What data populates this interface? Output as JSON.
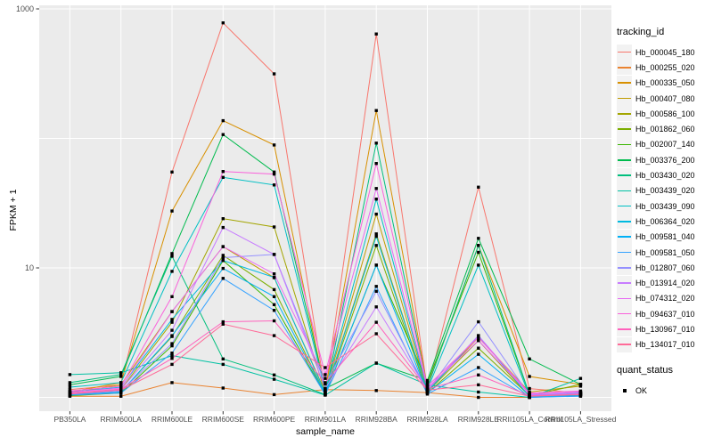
{
  "chart_data": {
    "type": "line",
    "title": "",
    "xlabel": "sample_name",
    "ylabel": "FPKM + 1",
    "y_scale": "log10",
    "ylim": [
      0.78,
      1060
    ],
    "grid": true,
    "legend_position": "right",
    "y_axis_ticks": [
      {
        "label": "1000",
        "value": 1000
      },
      {
        "label": "10",
        "value": 10
      }
    ],
    "unlabeled_gridline_values": [
      100,
      1
    ],
    "categories": [
      "PB350LA",
      "RRIM600LA",
      "RRIM600LE",
      "RRIM600SE",
      "RRIM600PE",
      "RRIM901LA",
      "RRIM928BA",
      "RRIM928LA",
      "RRIM928LE",
      "RRII105LA_Control",
      "RRII105LA_Stressed"
    ],
    "legend": {
      "title": "tracking_id"
    },
    "quant_legend": {
      "title": "quant_status",
      "items": [
        "OK"
      ]
    },
    "point_style": {
      "shape": "square",
      "color": "#000000"
    },
    "colors": {
      "panel_background": "#EBEBEB",
      "gridline": "#FFFFFF",
      "axis_text": "#4D4D4D",
      "tick_mark": "#333333",
      "legend_key_background": "#F2F2F2"
    },
    "series": [
      {
        "name": "Hb_000045_180",
        "color": "#F8766D",
        "values": [
          1.15,
          1.25,
          55,
          780,
          315,
          1.1,
          640,
          1.15,
          42,
          1.17,
          1.08
        ]
      },
      {
        "name": "Hb_000255_020",
        "color": "#EA8331",
        "values": [
          1.02,
          1.02,
          1.3,
          1.18,
          1.05,
          1.15,
          1.13,
          1.09,
          1.0,
          1.0,
          1.04
        ]
      },
      {
        "name": "Hb_000335_050",
        "color": "#D89000",
        "values": [
          1.1,
          1.3,
          27.5,
          137,
          89,
          1.12,
          164,
          1.2,
          14.9,
          1.45,
          1.26
        ]
      },
      {
        "name": "Hb_000407_080",
        "color": "#C09B00",
        "values": [
          1.08,
          1.25,
          4.6,
          14.6,
          8.4,
          1.1,
          26,
          1.12,
          2.9,
          1.1,
          1.22
        ]
      },
      {
        "name": "Hb_000586_100",
        "color": "#A3A500",
        "values": [
          1.05,
          1.15,
          3.8,
          24,
          20.7,
          1.08,
          18.3,
          1.1,
          2.75,
          1.02,
          1.06
        ]
      },
      {
        "name": "Hb_001862_060",
        "color": "#7CAE00",
        "values": [
          1.04,
          1.1,
          2.95,
          12.5,
          6.8,
          1.06,
          14.9,
          1.08,
          2.4,
          1.03,
          1.26
        ]
      },
      {
        "name": "Hb_002007_140",
        "color": "#39B600",
        "values": [
          1.03,
          1.08,
          2.5,
          11.4,
          5.2,
          1.05,
          10.5,
          1.3,
          13.2,
          1.05,
          1.05
        ]
      },
      {
        "name": "Hb_003376_200",
        "color": "#00BB4E",
        "values": [
          1.25,
          1.45,
          12.9,
          107,
          55,
          1.17,
          1.84,
          1.35,
          16.9,
          1.98,
          1.26
        ]
      },
      {
        "name": "Hb_003430_020",
        "color": "#00BF7D",
        "values": [
          1.3,
          1.5,
          12.3,
          1.98,
          1.49,
          1.05,
          92,
          1.2,
          14.9,
          1.05,
          1.1
        ]
      },
      {
        "name": "Hb_003439_020",
        "color": "#00C1A3",
        "values": [
          1.5,
          1.55,
          2.1,
          1.8,
          1.38,
          1.04,
          1.84,
          1.25,
          1.1,
          1.0,
          1.4
        ]
      },
      {
        "name": "Hb_003439_090",
        "color": "#00BFC4",
        "values": [
          1.2,
          1.3,
          9.4,
          50,
          43.7,
          1.12,
          34,
          1.15,
          10.5,
          1.02,
          1.08
        ]
      },
      {
        "name": "Hb_006364_020",
        "color": "#00BAE0",
        "values": [
          1.1,
          1.2,
          4.0,
          11.4,
          8.45,
          1.08,
          17.5,
          1.1,
          3.0,
          1.01,
          1.05
        ]
      },
      {
        "name": "Hb_009581_040",
        "color": "#00B0F6",
        "values": [
          1.05,
          1.1,
          3.0,
          9.9,
          6.0,
          1.06,
          10.5,
          1.08,
          2.15,
          1.0,
          1.03
        ]
      },
      {
        "name": "Hb_009581_050",
        "color": "#35A2FF",
        "values": [
          1.04,
          1.08,
          2.2,
          8.3,
          4.7,
          1.05,
          7.2,
          1.06,
          1.7,
          1.0,
          1.02
        ]
      },
      {
        "name": "Hb_012807_060",
        "color": "#9590FF",
        "values": [
          1.06,
          1.12,
          2.6,
          12.0,
          12.7,
          1.27,
          6.6,
          1.12,
          3.83,
          1.04,
          1.07
        ]
      },
      {
        "name": "Hb_013914_020",
        "color": "#C77CFF",
        "values": [
          1.08,
          1.15,
          3.3,
          20.5,
          12.7,
          1.17,
          5.0,
          1.14,
          3.0,
          1.05,
          1.09
        ]
      },
      {
        "name": "Hb_074312_020",
        "color": "#E76BF3",
        "values": [
          1.1,
          1.18,
          4.6,
          14.6,
          9.0,
          1.4,
          41,
          1.18,
          2.75,
          1.06,
          1.1
        ]
      },
      {
        "name": "Hb_094637_010",
        "color": "#FA62DB",
        "values": [
          1.12,
          1.22,
          6.0,
          55.5,
          53,
          1.5,
          64,
          1.22,
          2.9,
          1.08,
          1.12
        ]
      },
      {
        "name": "Hb_130967_010",
        "color": "#FF62BC",
        "values": [
          1.08,
          1.16,
          2.0,
          3.83,
          3.9,
          1.3,
          3.8,
          1.16,
          1.49,
          1.03,
          1.06
        ]
      },
      {
        "name": "Hb_134017_010",
        "color": "#FF6A98",
        "values": [
          1.06,
          1.14,
          1.8,
          3.68,
          3.0,
          1.7,
          3.1,
          1.14,
          1.25,
          1.02,
          1.05
        ]
      }
    ]
  }
}
